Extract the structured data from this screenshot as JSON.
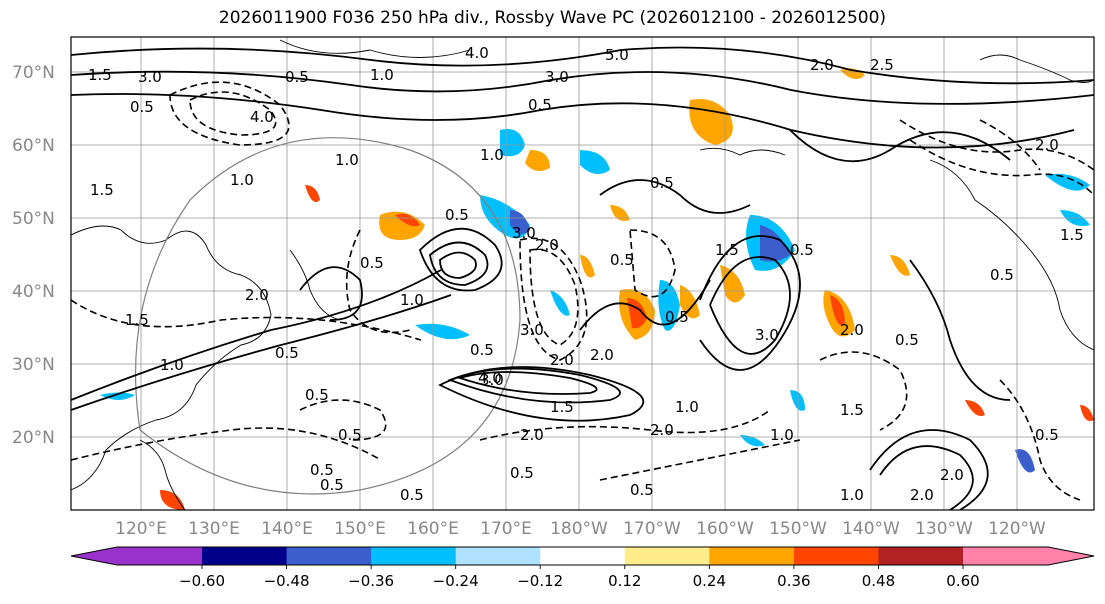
{
  "title": "2026011900 F036 250 hPa div., Rossby Wave PC (2026012100 - 2026012500)",
  "lat_labels": [
    "70°N",
    "60°N",
    "50°N",
    "40°N",
    "30°N",
    "20°N"
  ],
  "lon_labels": [
    "120°E",
    "130°E",
    "140°E",
    "150°E",
    "160°E",
    "170°E",
    "180°W",
    "170°W",
    "160°W",
    "150°W",
    "140°W",
    "130°W",
    "120°W"
  ],
  "colorbar": {
    "colors": [
      "#9932cc",
      "#00008b",
      "#3a5fcd",
      "#00bfff",
      "#b0e2ff",
      "#ffffff",
      "#ffec8b",
      "#ffa500",
      "#ff4500",
      "#b22222",
      "#ff82ab"
    ],
    "tick_labels": [
      "−0.60",
      "−0.48",
      "−0.36",
      "−0.24",
      "−0.12",
      "0.12",
      "0.24",
      "0.36",
      "0.48",
      "0.60"
    ]
  },
  "contour_labels": [
    "1.5",
    "3.0",
    "0.5",
    "4.0",
    "1.0",
    "5.0",
    "3.0",
    "0.5",
    "2.0",
    "2.5",
    "4.0",
    "0.5",
    "1.0",
    "1.5",
    "1.0",
    "1.0",
    "0.5",
    "0.5",
    "0.5",
    "2.0",
    "3.0",
    "0.5",
    "1.5",
    "0.5",
    "2.0",
    "1.0",
    "3.0",
    "0.5",
    "3.0",
    "2.0",
    "1.5",
    "1.0",
    "0.5",
    "4.0",
    "2.0",
    "0.5",
    "0.5",
    "0.5",
    "3.0",
    "1.5",
    "2.0",
    "0.5",
    "2.0",
    "1.0",
    "2.0",
    "0.5",
    "0.5",
    "0.5",
    "1.5",
    "1.0",
    "0.5",
    "0.5",
    "2.0",
    "1.0",
    "2.0",
    "2.0",
    "0.5",
    "0.5",
    "1.5"
  ]
}
